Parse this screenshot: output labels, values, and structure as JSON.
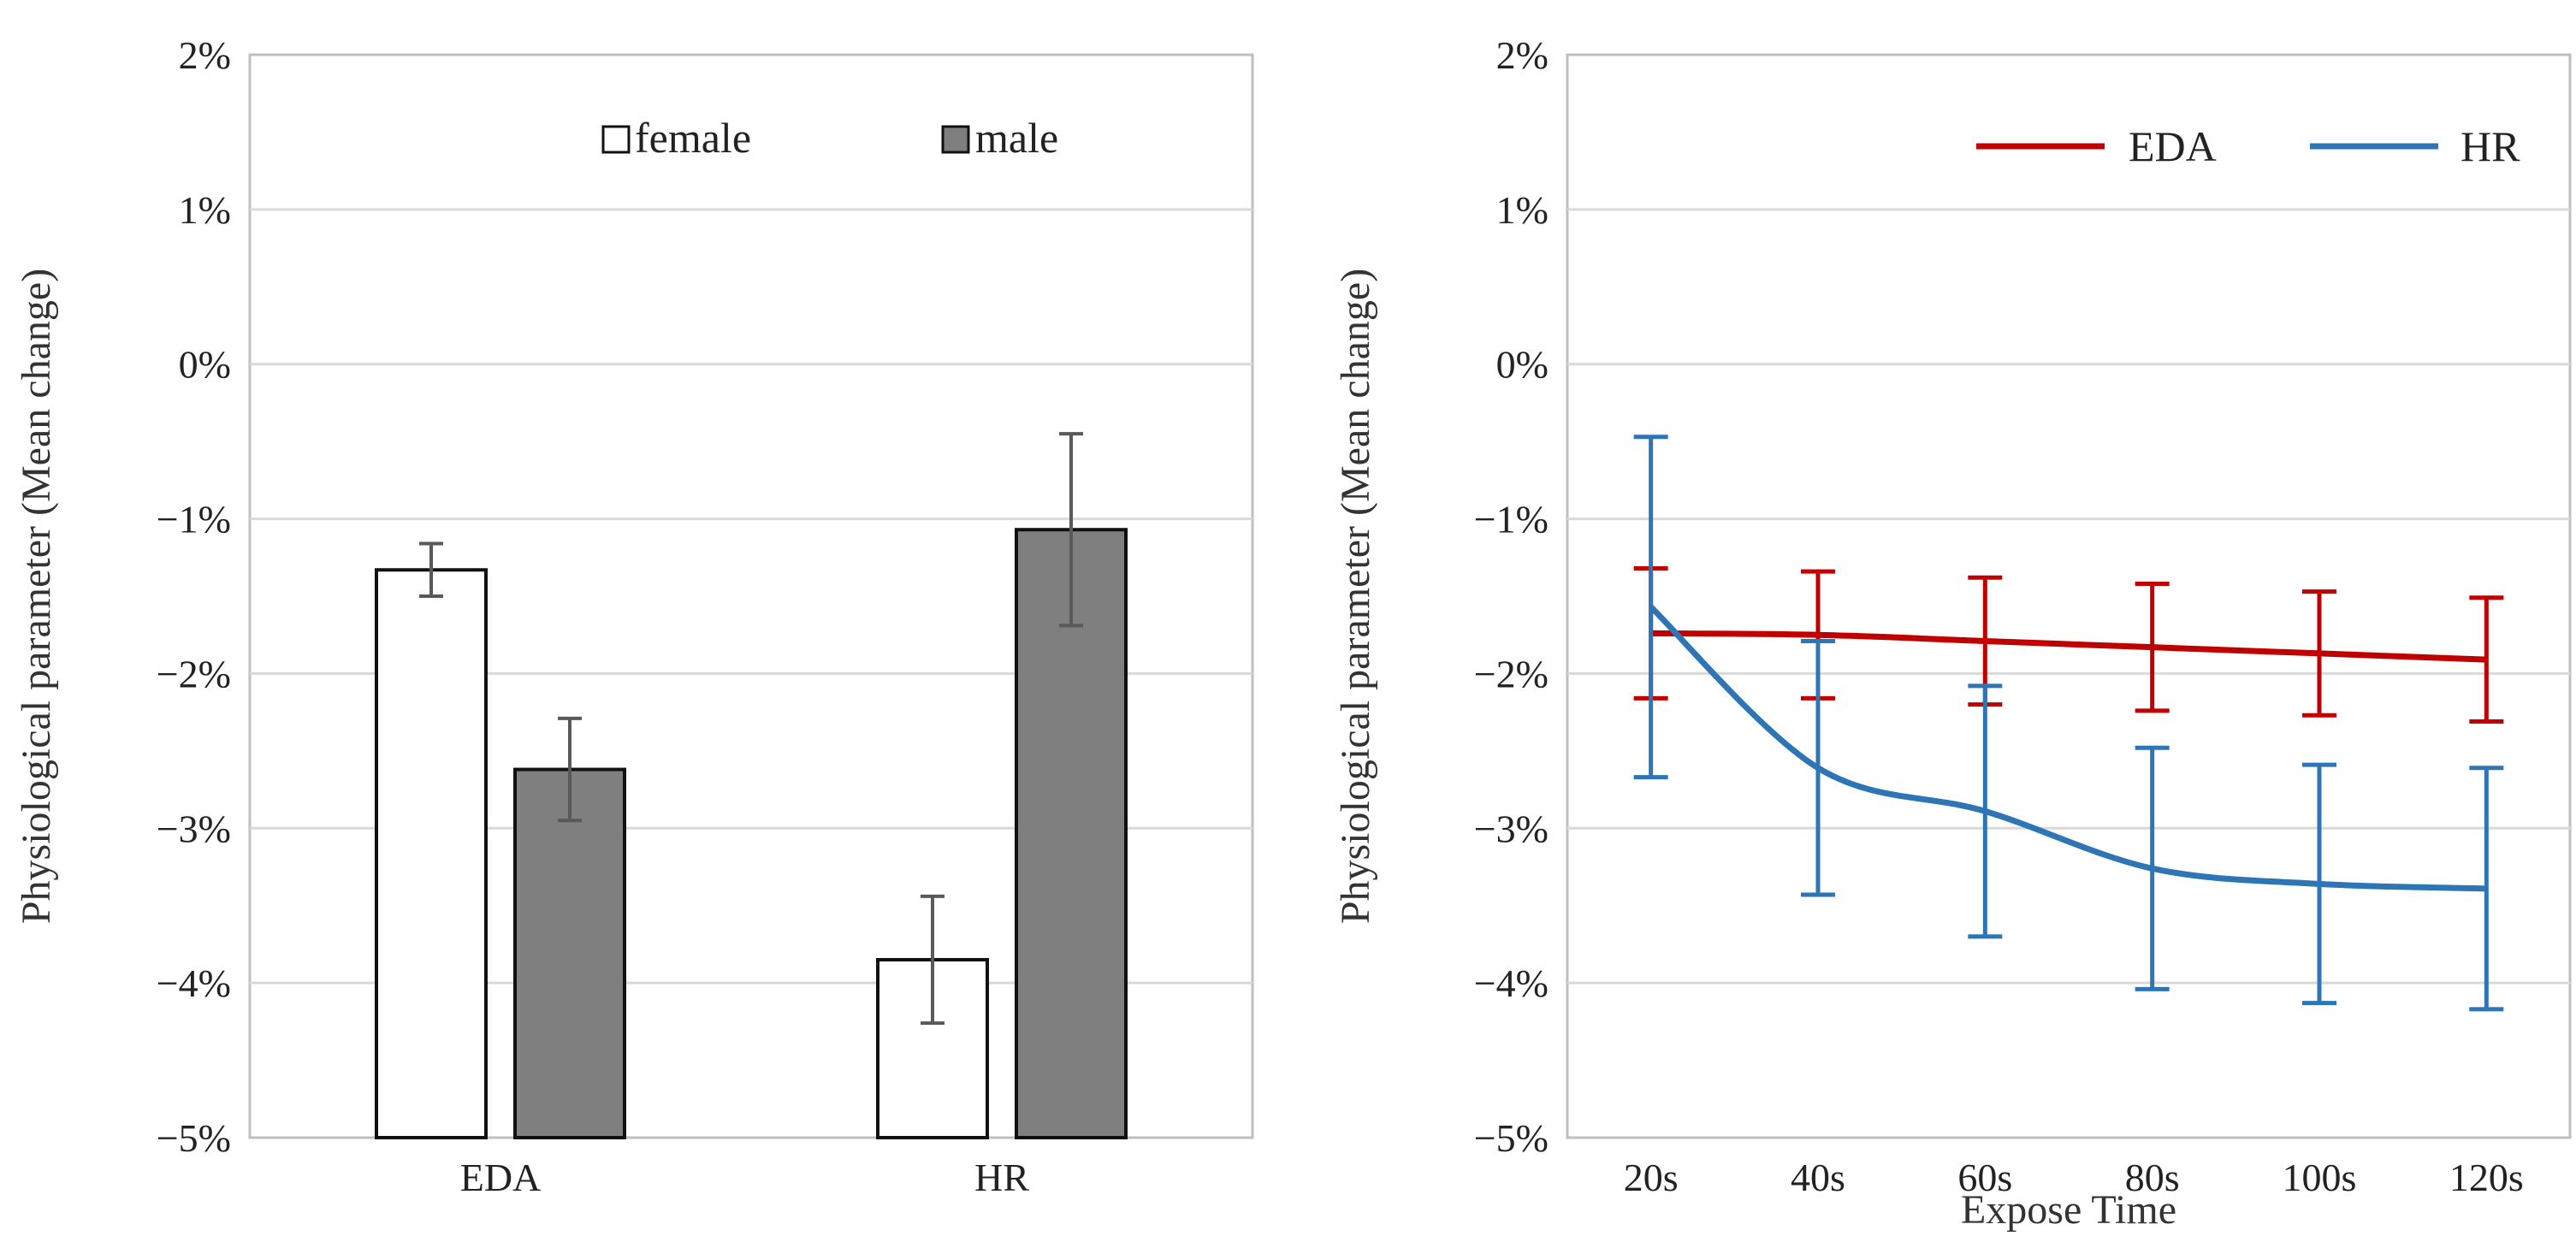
{
  "chart_data": [
    {
      "type": "bar",
      "ylabel": "Physiological parameter (Mean change)",
      "xlabel": "",
      "ylim": [
        -0.05,
        0.02
      ],
      "ytick_labels": [
        "2%",
        "1%",
        "0%",
        "−1%",
        "−2%",
        "−3%",
        "−4%",
        "−5%"
      ],
      "ytick_values": [
        0.02,
        0.01,
        0.0,
        -0.01,
        -0.02,
        -0.03,
        -0.04,
        -0.05
      ],
      "categories": [
        "EDA",
        "HR"
      ],
      "grid": true,
      "legend_position": "top-right",
      "series": [
        {
          "name": "female",
          "values": [
            -0.0133,
            -0.0385
          ],
          "errors": [
            0.0017,
            0.0041
          ],
          "color": "#ffffff"
        },
        {
          "name": "male",
          "values": [
            -0.0262,
            -0.0107
          ],
          "errors": [
            0.0033,
            0.0062
          ],
          "color": "#7f7f7f"
        }
      ]
    },
    {
      "type": "line",
      "ylabel": "Physiological parameter (Mean change)",
      "xlabel": "Expose Time",
      "ylim": [
        -0.05,
        0.02
      ],
      "ytick_labels": [
        "2%",
        "1%",
        "0%",
        "−1%",
        "−2%",
        "−3%",
        "−4%",
        "−5%"
      ],
      "ytick_values": [
        0.02,
        0.01,
        0.0,
        -0.01,
        -0.02,
        -0.03,
        -0.04,
        -0.05
      ],
      "x": [
        "20s",
        "40s",
        "60s",
        "80s",
        "100s",
        "120s"
      ],
      "grid": true,
      "legend_position": "top-right",
      "series": [
        {
          "name": "EDA",
          "values": [
            -0.0174,
            -0.0175,
            -0.0179,
            -0.0183,
            -0.0187,
            -0.0191
          ],
          "errors": [
            0.0042,
            0.0041,
            0.0041,
            0.0041,
            0.004,
            0.004
          ],
          "color": "#c00000"
        },
        {
          "name": "HR",
          "values": [
            -0.0157,
            -0.0261,
            -0.0289,
            -0.0326,
            -0.0336,
            -0.0339
          ],
          "errors": [
            0.011,
            0.0082,
            0.0081,
            0.0078,
            0.0077,
            0.0078
          ],
          "color": "#2e75b6"
        }
      ]
    }
  ]
}
